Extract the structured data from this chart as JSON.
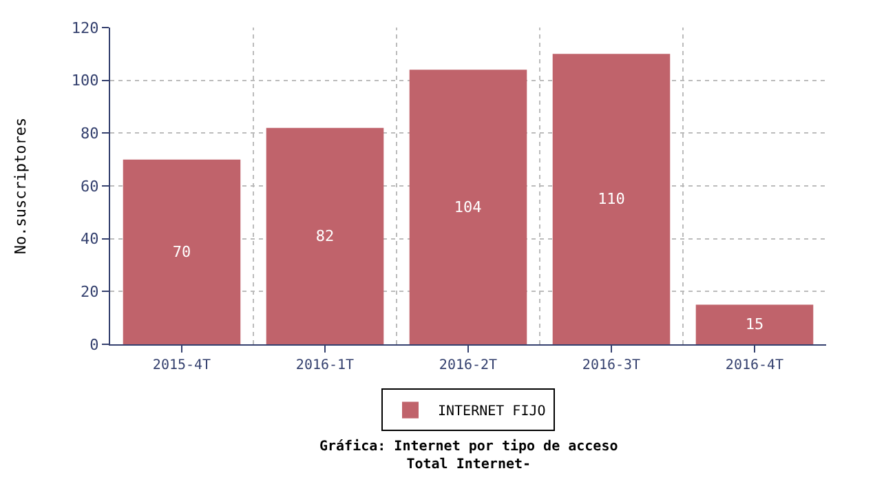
{
  "chart_data": {
    "type": "bar",
    "title": "Gráfica: Internet por tipo de acceso\nTotal Internet-",
    "ylabel": "No.suscriptores",
    "categories": [
      "2015-4T",
      "2016-1T",
      "2016-2T",
      "2016-3T",
      "2016-4T"
    ],
    "series": [
      {
        "name": "INTERNET FIJO",
        "color": "#c0636b",
        "values": [
          70,
          82,
          104,
          110,
          15
        ]
      }
    ],
    "ylim": [
      0,
      120
    ],
    "yticks": [
      0,
      20,
      40,
      60,
      80,
      100,
      120
    ],
    "grid": true,
    "legend": "bottom",
    "data_labels": true
  }
}
